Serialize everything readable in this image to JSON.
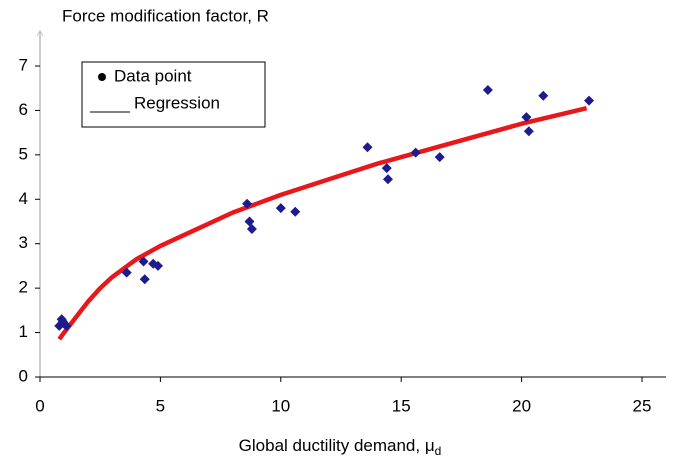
{
  "chart_data": {
    "type": "scatter",
    "ylabel": "Force modification factor, R",
    "xlabel": {
      "text": "Global ductility demand, μ",
      "subscript": "d"
    },
    "xlim": [
      0,
      26
    ],
    "ylim": [
      0,
      7.8
    ],
    "xticks": [
      0,
      5,
      10,
      15,
      20,
      25
    ],
    "yticks": [
      0,
      1,
      2,
      3,
      4,
      5,
      6,
      7
    ],
    "grid": false,
    "legend": "upper left",
    "series": [
      {
        "name": "Data point",
        "type": "scatter",
        "color": "#1c1c8e",
        "x": [
          0.8,
          0.9,
          1.0,
          1.1,
          0.95,
          3.6,
          4.3,
          4.35,
          4.7,
          4.9,
          8.6,
          8.7,
          8.8,
          10.0,
          10.6,
          13.6,
          14.4,
          14.45,
          15.6,
          16.6,
          18.6,
          20.2,
          20.3,
          20.9,
          22.8
        ],
        "values": [
          1.15,
          1.3,
          1.2,
          1.15,
          1.25,
          2.35,
          2.6,
          2.2,
          2.55,
          2.5,
          3.9,
          3.5,
          3.33,
          3.8,
          3.72,
          5.17,
          4.7,
          4.45,
          5.05,
          4.95,
          6.46,
          5.85,
          5.53,
          6.33,
          6.22
        ]
      },
      {
        "name": "Regression",
        "type": "line",
        "color": "#e8171b",
        "x": [
          0.8,
          1,
          1.5,
          2,
          2.5,
          3,
          4,
          5,
          6,
          8,
          10,
          12,
          14,
          16,
          18,
          20,
          22.7
        ],
        "values": [
          0.85,
          1.0,
          1.35,
          1.7,
          2.0,
          2.25,
          2.65,
          2.95,
          3.2,
          3.7,
          4.1,
          4.45,
          4.8,
          5.1,
          5.4,
          5.7,
          6.05
        ]
      }
    ]
  }
}
